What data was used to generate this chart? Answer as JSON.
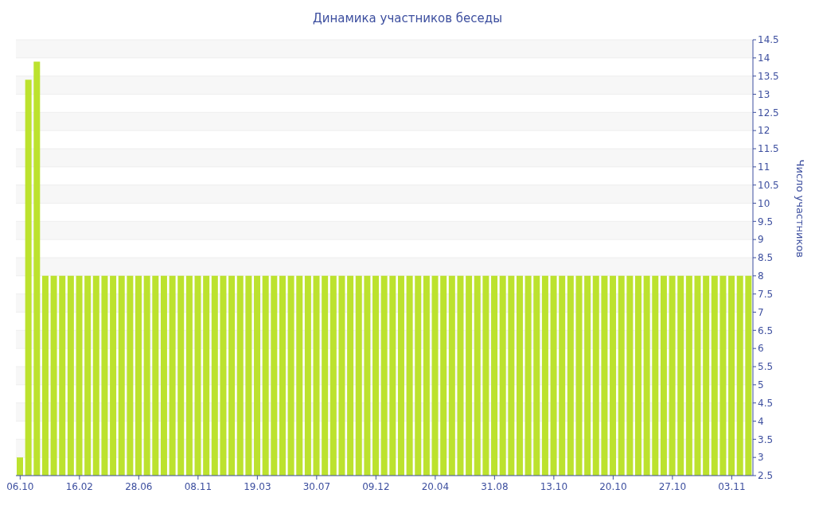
{
  "chart_data": {
    "type": "bar",
    "title": "Динамика участников беседы",
    "ylabel": "Число участников",
    "categories": [
      "06.10",
      null,
      null,
      null,
      null,
      null,
      null,
      "16.02",
      null,
      null,
      null,
      null,
      null,
      null,
      "28.06",
      null,
      null,
      null,
      null,
      null,
      null,
      "08.11",
      null,
      null,
      null,
      null,
      null,
      null,
      "19.03",
      null,
      null,
      null,
      null,
      null,
      null,
      "30.07",
      null,
      null,
      null,
      null,
      null,
      null,
      "09.12",
      null,
      null,
      null,
      null,
      null,
      null,
      "20.04",
      null,
      null,
      null,
      null,
      null,
      null,
      "31.08",
      null,
      null,
      null,
      null,
      null,
      null,
      "13.10",
      null,
      null,
      null,
      null,
      null,
      null,
      "20.10",
      null,
      null,
      null,
      null,
      null,
      null,
      "27.10",
      null,
      null,
      null,
      null,
      null,
      null,
      "03.11",
      null,
      null
    ],
    "values": [
      3,
      13.4,
      13.9,
      8,
      8,
      8,
      8,
      8,
      8,
      8,
      8,
      8,
      8,
      8,
      8,
      8,
      8,
      8,
      8,
      8,
      8,
      8,
      8,
      8,
      8,
      8,
      8,
      8,
      8,
      8,
      8,
      8,
      8,
      8,
      8,
      8,
      8,
      8,
      8,
      8,
      8,
      8,
      8,
      8,
      8,
      8,
      8,
      8,
      8,
      8,
      8,
      8,
      8,
      8,
      8,
      8,
      8,
      8,
      8,
      8,
      8,
      8,
      8,
      8,
      8,
      8,
      8,
      8,
      8,
      8,
      8,
      8,
      8,
      8,
      8,
      8,
      8,
      8,
      8,
      8,
      8,
      8,
      8,
      8,
      8,
      8,
      8
    ],
    "color": "#bce22e",
    "ylim": [
      2.5,
      14.5
    ],
    "yticks": [
      2.5,
      3,
      3.5,
      4,
      4.5,
      5,
      5.5,
      6,
      6.5,
      7,
      7.5,
      8,
      8.5,
      9,
      9.5,
      10,
      10.5,
      11,
      11.5,
      12,
      12.5,
      13,
      13.5,
      14,
      14.5
    ],
    "grid": "y"
  }
}
